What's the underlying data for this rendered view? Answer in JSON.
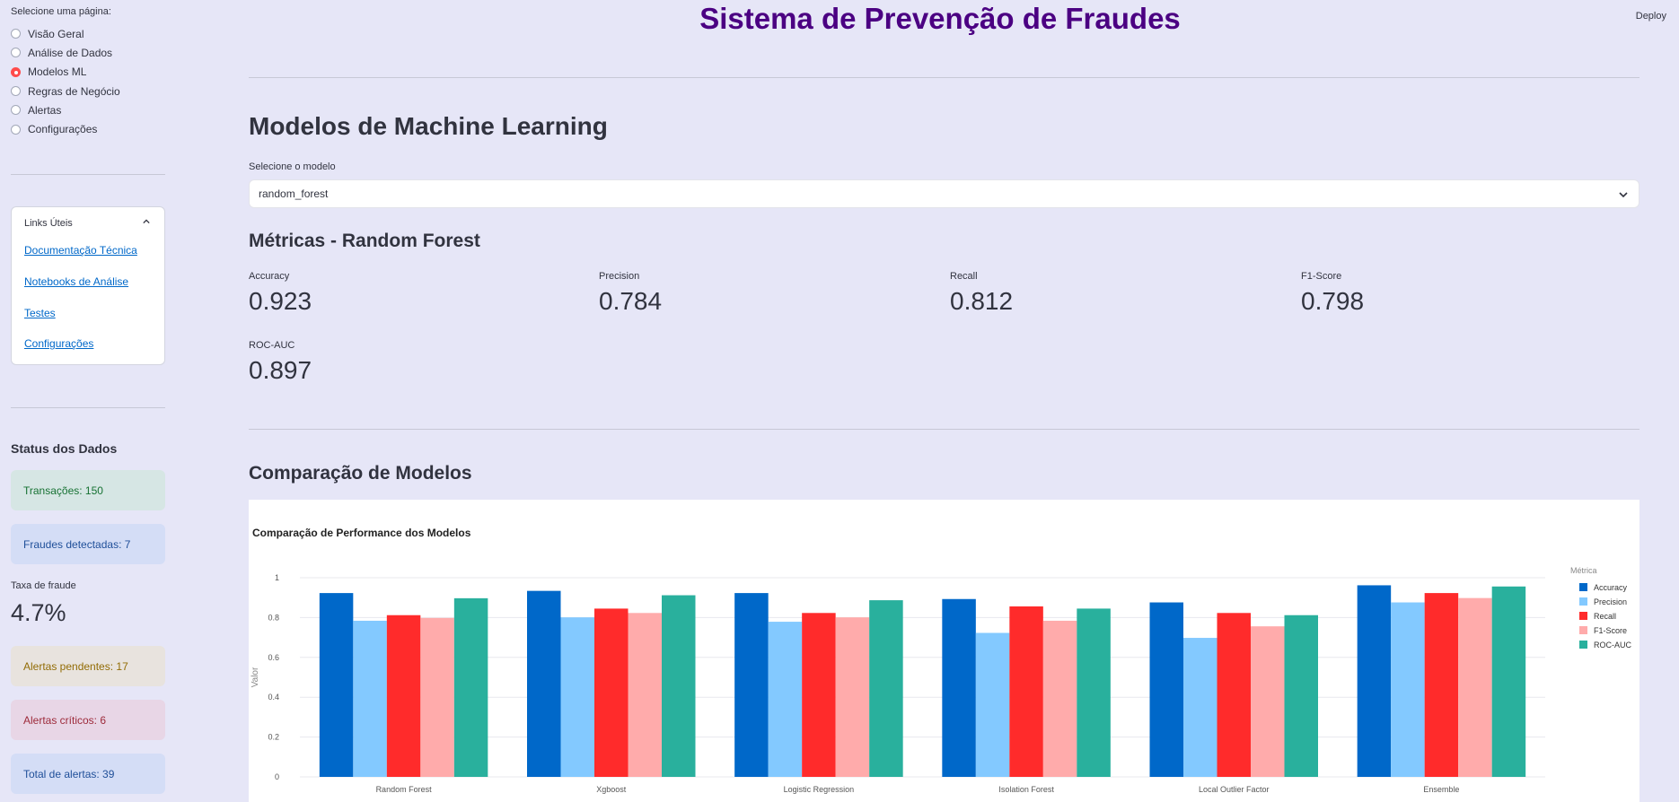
{
  "sidebar": {
    "nav_label": "Selecione uma página:",
    "pages": [
      {
        "label": "Visão Geral",
        "selected": false
      },
      {
        "label": "Análise de Dados",
        "selected": false
      },
      {
        "label": "Modelos ML",
        "selected": true
      },
      {
        "label": "Regras de Negócio",
        "selected": false
      },
      {
        "label": "Alertas",
        "selected": false
      },
      {
        "label": "Configurações",
        "selected": false
      }
    ],
    "links_title": "Links Úteis",
    "links": [
      "Documentação Técnica",
      "Notebooks de Análise",
      "Testes",
      "Configurações"
    ],
    "status_title": "Status dos Dados",
    "transactions": "Transações: 150",
    "frauds": "Fraudes detectadas: 7",
    "fraud_rate_label": "Taxa de fraude",
    "fraud_rate_value": "4.7%",
    "pending_alerts": "Alertas pendentes: 17",
    "critical_alerts": "Alertas críticos: 6",
    "total_alerts": "Total de alertas: 39"
  },
  "header": {
    "title": "Sistema de Prevenção de Fraudes",
    "deploy": "Deploy"
  },
  "main": {
    "heading": "Modelos de Machine Learning",
    "select_label": "Selecione o modelo",
    "select_value": "random_forest",
    "metrics_title": "Métricas - Random Forest",
    "metrics": [
      {
        "label": "Accuracy",
        "value": "0.923"
      },
      {
        "label": "Precision",
        "value": "0.784"
      },
      {
        "label": "Recall",
        "value": "0.812"
      },
      {
        "label": "F1-Score",
        "value": "0.798"
      },
      {
        "label": "ROC-AUC",
        "value": "0.897"
      }
    ],
    "comparison_title": "Comparação de Modelos"
  },
  "chart_data": {
    "type": "bar",
    "title": "Comparação de Performance dos Modelos",
    "xlabel": "",
    "ylabel": "Valor",
    "ylim": [
      0,
      1
    ],
    "yticks": [
      "0",
      "0.2",
      "0.4",
      "0.6",
      "0.8",
      "1"
    ],
    "legend_title": "Métrica",
    "legend_position": "right",
    "categories": [
      "Random Forest",
      "Xgboost",
      "Logistic Regression",
      "Isolation Forest",
      "Local Outlier Factor",
      "Ensemble"
    ],
    "series": [
      {
        "name": "Accuracy",
        "color": "#0068c9",
        "values": [
          0.923,
          0.934,
          0.923,
          0.893,
          0.876,
          0.962
        ]
      },
      {
        "name": "Precision",
        "color": "#83c9ff",
        "values": [
          0.784,
          0.801,
          0.779,
          0.723,
          0.698,
          0.876
        ]
      },
      {
        "name": "Recall",
        "color": "#ff2b2b",
        "values": [
          0.812,
          0.845,
          0.823,
          0.856,
          0.823,
          0.923
        ]
      },
      {
        "name": "F1-Score",
        "color": "#ffabab",
        "values": [
          0.798,
          0.823,
          0.801,
          0.784,
          0.756,
          0.898
        ]
      },
      {
        "name": "ROC-AUC",
        "color": "#29b09d",
        "values": [
          0.897,
          0.912,
          0.887,
          0.845,
          0.812,
          0.956
        ]
      }
    ]
  }
}
